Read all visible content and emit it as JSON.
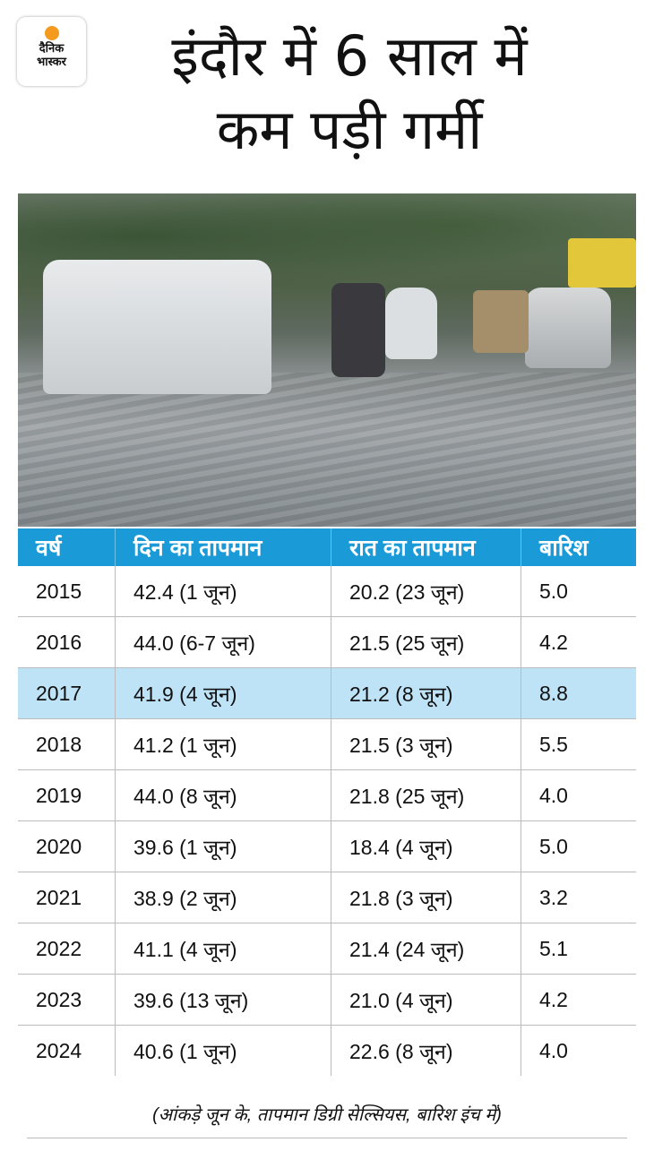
{
  "logo": {
    "line1": "दैनिक",
    "line2": "भास्कर",
    "sun_color": "#f39a1f"
  },
  "title": {
    "line1": "इंदौर में 6 साल में",
    "line2": "कम पड़ी गर्मी"
  },
  "table": {
    "header_color": "#1b9ad8",
    "highlight_color": "#bfe3f6",
    "headers": [
      "वर्ष",
      "दिन का तापमान",
      "रात का तापमान",
      "बारिश"
    ],
    "rows": [
      [
        "2015",
        "42.4 (1 जून)",
        "20.2 (23 जून)",
        "5.0"
      ],
      [
        "2016",
        "44.0 (6-7 जून)",
        "21.5 (25 जून)",
        "4.2"
      ],
      [
        "2017",
        "41.9 (4 जून)",
        "21.2 (8 जून)",
        "8.8"
      ],
      [
        "2018",
        "41.2 (1 जून)",
        "21.5 (3 जून)",
        "5.5"
      ],
      [
        "2019",
        "44.0 (8 जून)",
        "21.8 (25 जून)",
        "4.0"
      ],
      [
        "2020",
        "39.6 (1 जून)",
        "18.4 (4 जून)",
        "5.0"
      ],
      [
        "2021",
        "38.9 (2 जून)",
        "21.8 (3 जून)",
        "3.2"
      ],
      [
        "2022",
        "41.1 (4 जून)",
        "21.4 (24 जून)",
        "5.1"
      ],
      [
        "2023",
        "39.6 (13 जून)",
        "21.0 (4 जून)",
        "4.2"
      ],
      [
        "2024",
        "40.6 (1 जून)",
        "22.6 (8 जून)",
        "4.0"
      ]
    ],
    "highlighted_row": 2
  },
  "note": "(आंकड़े जून के, तापमान डिग्री सेल्सियस, बारिश इंच में)"
}
